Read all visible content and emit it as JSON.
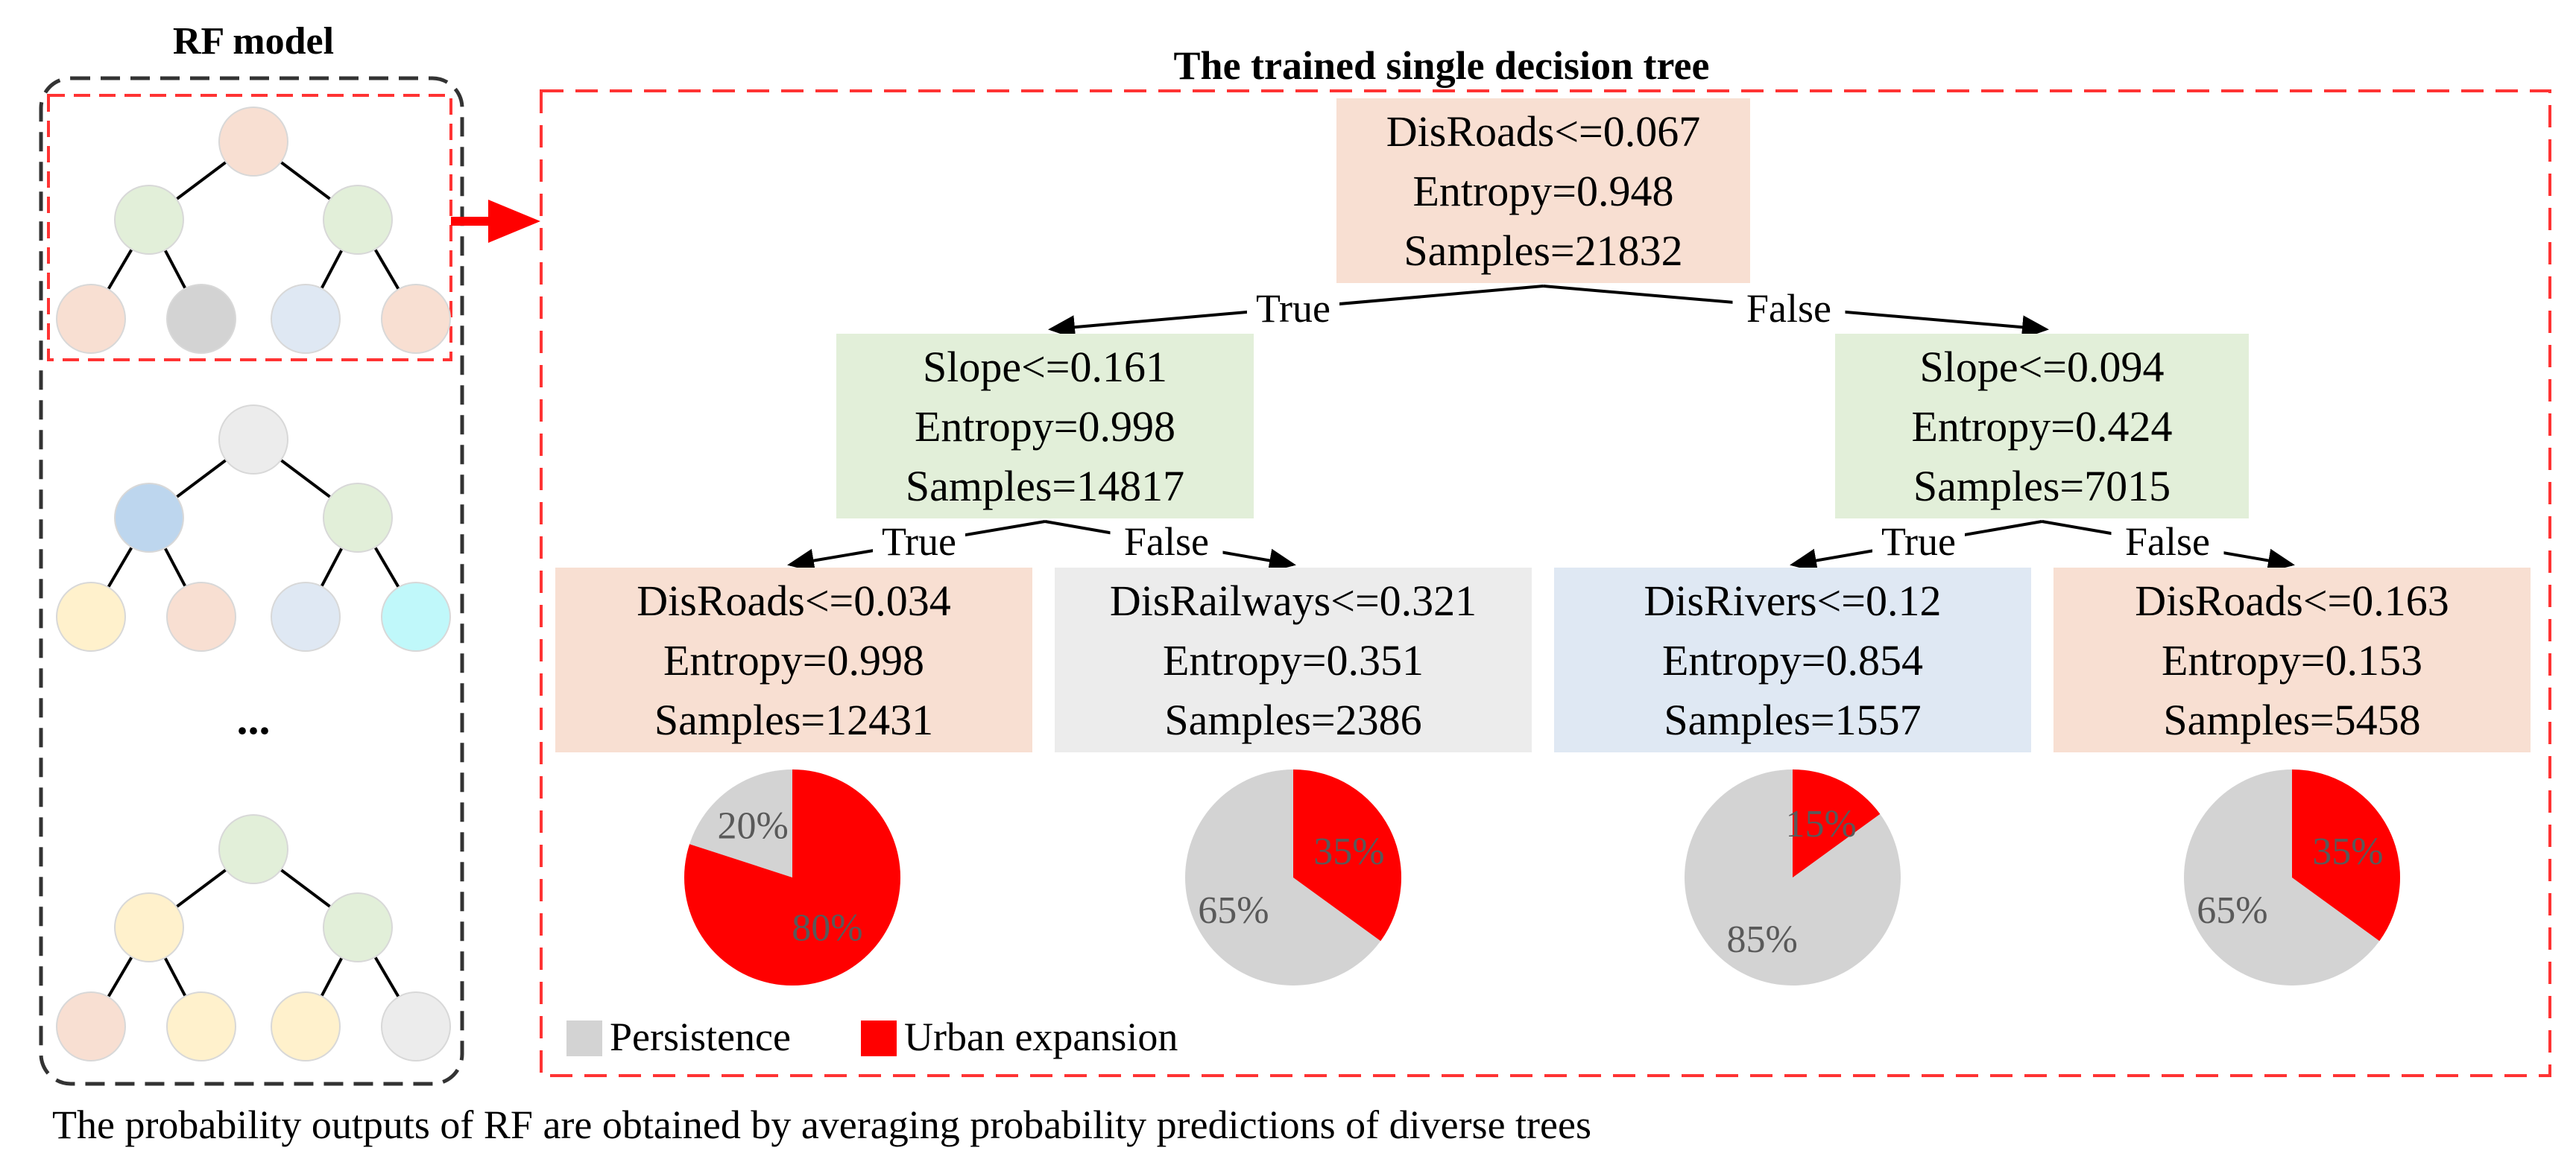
{
  "rf_panel": {
    "title": "RF model",
    "ellipsis": "...",
    "trees": [
      {
        "colors": [
          "#f8dfd2",
          "#e2efd9",
          "#e2efd9",
          "#f8dfd2",
          "#d3d3d3",
          "#dfe8f3",
          "#f8dfd2"
        ]
      },
      {
        "colors": [
          "#ececec",
          "#bdd6ee",
          "#e2efd9",
          "#fff1cc",
          "#f8dfd2",
          "#dfe8f3",
          "#c0f8fa"
        ]
      },
      {
        "colors": [
          "#e2efd9",
          "#fff1cc",
          "#e2efd9",
          "#f8dfd2",
          "#fff1cc",
          "#fff1cc",
          "#ececec"
        ]
      }
    ]
  },
  "tree_panel": {
    "title": "The trained single decision  tree",
    "root": {
      "lines": [
        "DisRoads<=0.067",
        "Entropy=0.948",
        "Samples=21832"
      ],
      "color": "#f8dfd2"
    },
    "level1": [
      {
        "lines": [
          "Slope<=0.161",
          "Entropy=0.998",
          "Samples=14817"
        ],
        "color": "#e2efd9",
        "edge_label": "True"
      },
      {
        "lines": [
          "Slope<=0.094",
          "Entropy=0.424",
          "Samples=7015"
        ],
        "color": "#e2efd9",
        "edge_label": "False"
      }
    ],
    "level2": [
      {
        "lines": [
          "DisRoads<=0.034",
          "Entropy=0.998",
          "Samples=12431"
        ],
        "color": "#f8dfd2",
        "edge_label": "True"
      },
      {
        "lines": [
          "DisRailways<=0.321",
          "Entropy=0.351",
          "Samples=2386"
        ],
        "color": "#ececec",
        "edge_label": "False"
      },
      {
        "lines": [
          "DisRivers<=0.12",
          "Entropy=0.854",
          "Samples=1557"
        ],
        "color": "#dfe8f3",
        "edge_label": "True"
      },
      {
        "lines": [
          "DisRoads<=0.163",
          "Entropy=0.153",
          "Samples=5458"
        ],
        "color": "#f8dfd2",
        "edge_label": "False"
      }
    ],
    "pies": [
      {
        "urban_expansion": 80,
        "persistence": 20,
        "labels": {
          "urban_expansion": "80%",
          "persistence": "20%"
        }
      },
      {
        "urban_expansion": 35,
        "persistence": 65,
        "labels": {
          "urban_expansion": "35%",
          "persistence": "65%"
        }
      },
      {
        "urban_expansion": 15,
        "persistence": 85,
        "labels": {
          "urban_expansion": "15%",
          "persistence": "85%"
        }
      },
      {
        "urban_expansion": 35,
        "persistence": 65,
        "labels": {
          "urban_expansion": "35%",
          "persistence": "65%"
        }
      }
    ],
    "legend": [
      {
        "label": "Persistence",
        "color": "#d3d3d3"
      },
      {
        "label": "Urban expansion",
        "color": "#ff0000"
      }
    ]
  },
  "caption": "The probability outputs of RF are obtained by averaging probability predictions of diverse trees",
  "colors": {
    "persistence": "#d3d3d3",
    "urban": "#ff0000",
    "dashed_red": "#ff3333",
    "dashed_black": "#333333",
    "pie_label": "#595959"
  }
}
